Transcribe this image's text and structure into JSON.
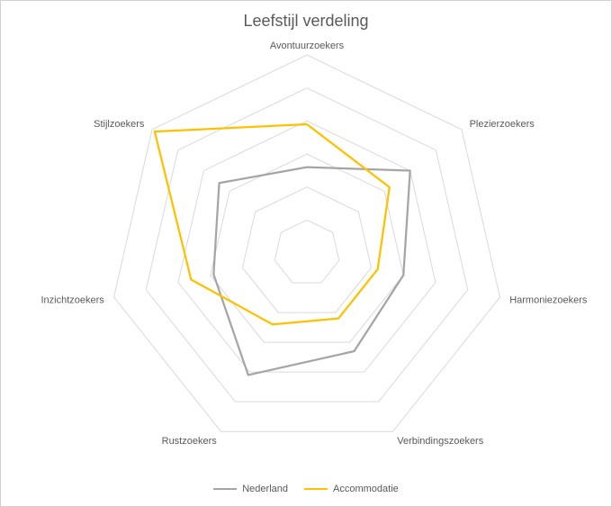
{
  "chart_data": {
    "type": "radar",
    "title": "Leefstijl verdeling",
    "categories": [
      "Avontuurzoekers",
      "Plezierzoekers",
      "Harmoniezoekers",
      "Verbindingszoekers",
      "Rustzoekers",
      "Inzichtzoekers",
      "Stijlzoekers"
    ],
    "r_range": [
      0,
      6
    ],
    "gridlines": 6,
    "series": [
      {
        "name": "Nederland",
        "color": "#a5a5a5",
        "values": [
          2.6,
          4.0,
          3.0,
          3.3,
          4.1,
          2.9,
          3.4
        ]
      },
      {
        "name": "Accommodatie",
        "color": "#ffc000",
        "values": [
          3.9,
          3.2,
          2.2,
          2.2,
          2.4,
          3.6,
          5.9
        ]
      }
    ]
  }
}
